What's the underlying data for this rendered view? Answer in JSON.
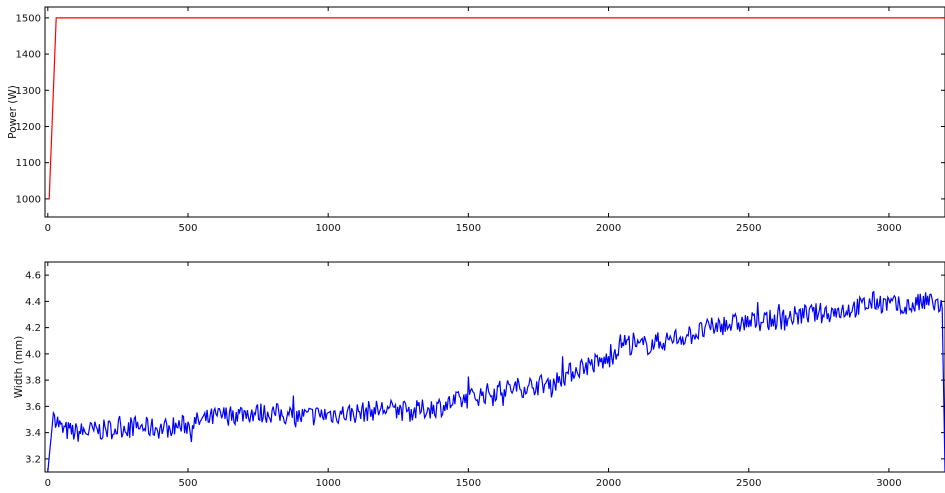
{
  "chart_data": [
    {
      "type": "line",
      "ylabel": "Power (W)",
      "xlabel": "",
      "xlim": [
        -10,
        3200
      ],
      "ylim": [
        950,
        1530
      ],
      "xticks": [
        "0",
        "500",
        "1000",
        "1500",
        "2000",
        "2500",
        "3000"
      ],
      "yticks": [
        "1000",
        "1100",
        "1200",
        "1300",
        "1400",
        "1500"
      ],
      "grid": false,
      "series": [
        {
          "color": "#ff0000",
          "x": [
            0,
            5,
            10,
            15,
            20,
            25,
            30,
            3200
          ],
          "y": [
            1000,
            1000,
            1100,
            1200,
            1300,
            1400,
            1500,
            1500
          ]
        }
      ]
    },
    {
      "type": "line",
      "ylabel": "Width (mm)",
      "xlabel": "",
      "xlim": [
        -10,
        3200
      ],
      "ylim": [
        3.1,
        4.7
      ],
      "xticks": [
        "0",
        "500",
        "1000",
        "1500",
        "2000",
        "2500",
        "3000"
      ],
      "yticks": [
        "3.2",
        "3.4",
        "3.6",
        "3.8",
        "4.0",
        "4.2",
        "4.4",
        "4.6"
      ],
      "grid": false,
      "series": [
        {
          "color": "#0000ff",
          "x": [
            0,
            20,
            50,
            100,
            200,
            300,
            400,
            500,
            600,
            700,
            800,
            900,
            1000,
            1100,
            1200,
            1300,
            1400,
            1500,
            1600,
            1700,
            1800,
            1900,
            2000,
            2050,
            2100,
            2200,
            2300,
            2400,
            2500,
            2600,
            2700,
            2800,
            2900,
            2950,
            3000,
            3050,
            3100,
            3150,
            3190,
            3200
          ],
          "y": [
            3.1,
            3.55,
            3.42,
            3.4,
            3.42,
            3.45,
            3.43,
            3.46,
            3.52,
            3.55,
            3.55,
            3.52,
            3.54,
            3.55,
            3.58,
            3.56,
            3.6,
            3.66,
            3.72,
            3.75,
            3.78,
            3.9,
            3.95,
            4.1,
            4.05,
            4.1,
            4.15,
            4.22,
            4.24,
            4.26,
            4.3,
            4.32,
            4.36,
            4.4,
            4.38,
            4.35,
            4.38,
            4.4,
            4.35,
            3.1
          ]
        }
      ]
    }
  ]
}
